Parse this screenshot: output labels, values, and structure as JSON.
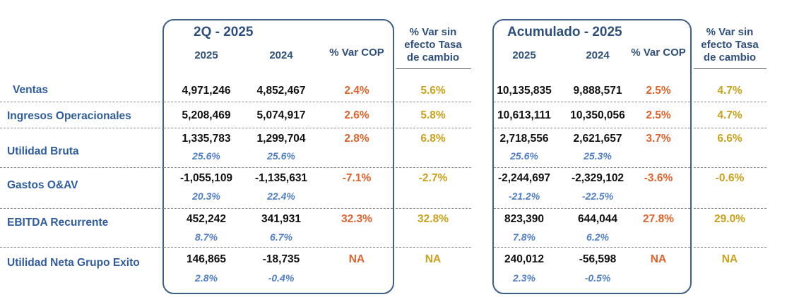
{
  "panels": [
    {
      "title": "2Q - 2025",
      "col_2025": "2025",
      "col_2024": "2024",
      "col_var": "% Var COP",
      "col_var_tc": [
        "% Var sin",
        "efecto Tasa",
        "de cambio"
      ],
      "rows": [
        {
          "v2025": "4,971,246",
          "v2024": "4,852,467",
          "var": "2.4%",
          "var_tc": "5.6%"
        },
        {
          "v2025": "5,208,469",
          "v2024": "5,074,917",
          "var": "2.6%",
          "var_tc": "5.8%"
        },
        {
          "v2025": "1,335,783",
          "v2024": "1,299,704",
          "var": "2.8%",
          "var_tc": "6.8%",
          "p2025": "25.6%",
          "p2024": "25.6%"
        },
        {
          "v2025": "-1,055,109",
          "v2024": "-1,135,631",
          "var": "-7.1%",
          "var_tc": "-2.7%",
          "p2025": "20.3%",
          "p2024": "22.4%"
        },
        {
          "v2025": "452,242",
          "v2024": "341,931",
          "var": "32.3%",
          "var_tc": "32.8%",
          "p2025": "8.7%",
          "p2024": "6.7%"
        },
        {
          "v2025": "146,865",
          "v2024": "-18,735",
          "var": "NA",
          "var_tc": "NA",
          "p2025": "2.8%",
          "p2024": "-0.4%"
        }
      ]
    },
    {
      "title": "Acumulado - 2025",
      "col_2025": "2025",
      "col_2024": "2024",
      "col_var": "% Var COP",
      "col_var_tc": [
        "% Var sin",
        "efecto Tasa",
        "de cambio"
      ],
      "rows": [
        {
          "v2025": "10,135,835",
          "v2024": "9,888,571",
          "var": "2.5%",
          "var_tc": "4.7%"
        },
        {
          "v2025": "10,613,111",
          "v2024": "10,350,056",
          "var": "2.5%",
          "var_tc": "4.7%"
        },
        {
          "v2025": "2,718,556",
          "v2024": "2,621,657",
          "var": "3.7%",
          "var_tc": "6.6%",
          "p2025": "25.6%",
          "p2024": "25.3%"
        },
        {
          "v2025": "-2,244,697",
          "v2024": "-2,329,102",
          "var": "-3.6%",
          "var_tc": "-0.6%",
          "p2025": "-21.2%",
          "p2024": "-22.5%"
        },
        {
          "v2025": "823,390",
          "v2024": "644,044",
          "var": "27.8%",
          "var_tc": "29.0%",
          "p2025": "7.8%",
          "p2024": "6.2%"
        },
        {
          "v2025": "240,012",
          "v2024": "-56,598",
          "var": "NA",
          "var_tc": "NA",
          "p2025": "2.3%",
          "p2024": "-0.5%"
        }
      ]
    }
  ],
  "row_labels": [
    "Ventas",
    "Ingresos Operacionales",
    "Utilidad Bruta",
    "Gastos O&AV",
    "EBITDA Recurrente",
    "Utilidad Neta Grupo Exito"
  ],
  "colors": {
    "frame": "#3e5f86",
    "header": "#2e4f7c",
    "row_label": "#2e5c9f",
    "percent_of_sales": "#4f7fc6",
    "var_cop": "#e0632b",
    "var_fx": "#c9a11a"
  }
}
